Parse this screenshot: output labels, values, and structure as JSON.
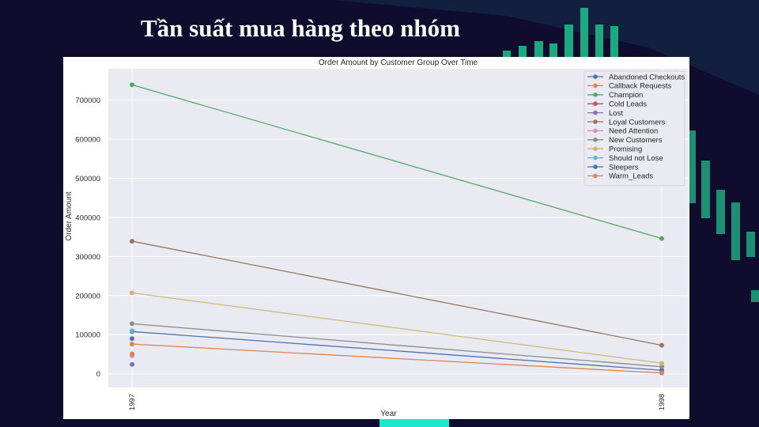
{
  "slide": {
    "title": "Tần suất mua hàng theo nhóm"
  },
  "colors": {
    "background": "#0f0c2e",
    "accent_teal": "#1ea882",
    "plot_bg": "#eaeaf2"
  },
  "chart_data": {
    "type": "line",
    "title": "Order Amount by Customer Group Over Time",
    "xlabel": "Year",
    "ylabel": "Order Amount",
    "categories": [
      "1997",
      "1998"
    ],
    "ylim": [
      -35000,
      780000
    ],
    "yticks": [
      0,
      100000,
      200000,
      300000,
      400000,
      500000,
      600000,
      700000
    ],
    "grid": true,
    "legend_position": "top-right",
    "series": [
      {
        "name": "Abandoned Checkouts",
        "color": "#4c72b0",
        "values": [
          108000,
          9000
        ]
      },
      {
        "name": "Callback Requests",
        "color": "#dd8452",
        "values": [
          76000,
          2000
        ]
      },
      {
        "name": "Champion",
        "color": "#55a868",
        "values": [
          739000,
          346000
        ]
      },
      {
        "name": "Cold Leads",
        "color": "#c44e52",
        "values": [
          48000,
          null
        ]
      },
      {
        "name": "Lost",
        "color": "#8172b3",
        "values": [
          24000,
          null
        ]
      },
      {
        "name": "Loyal Customers",
        "color": "#937860",
        "values": [
          339000,
          73000
        ]
      },
      {
        "name": "Need Attention",
        "color": "#da8bc3",
        "values": [
          46000,
          null
        ]
      },
      {
        "name": "New Customers",
        "color": "#8c8c8c",
        "values": [
          128000,
          18000
        ]
      },
      {
        "name": "Promising",
        "color": "#ccb974",
        "values": [
          207000,
          27000
        ]
      },
      {
        "name": "Should not Lose",
        "color": "#64b5cd",
        "values": [
          110000,
          null
        ]
      },
      {
        "name": "Sleepers",
        "color": "#4c72b0",
        "values": [
          90000,
          null
        ]
      },
      {
        "name": "Warm_Leads",
        "color": "#dd8452",
        "values": [
          51000,
          null
        ]
      }
    ]
  }
}
